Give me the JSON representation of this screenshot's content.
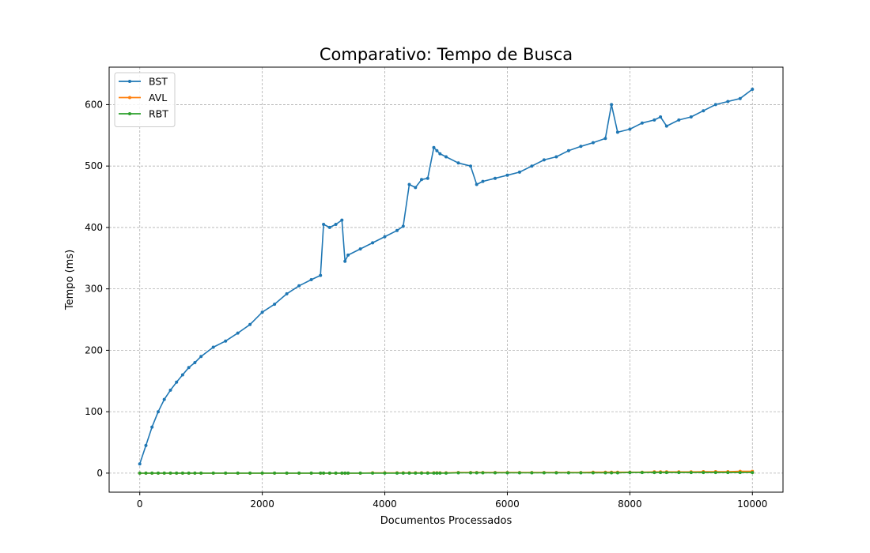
{
  "chart_data": {
    "type": "line",
    "title": "Comparativo: Tempo de Busca",
    "xlabel": "Documentos Processados",
    "ylabel": "Tempo (ms)",
    "xlim": [
      -500,
      10500
    ],
    "ylim": [
      -31,
      661
    ],
    "xticks": [
      0,
      2000,
      4000,
      6000,
      8000,
      10000
    ],
    "yticks": [
      0,
      100,
      200,
      300,
      400,
      500,
      600
    ],
    "grid": true,
    "legend_position": "top-left",
    "x": [
      0,
      100,
      200,
      300,
      400,
      500,
      600,
      700,
      800,
      900,
      1000,
      1200,
      1400,
      1600,
      1800,
      2000,
      2200,
      2400,
      2600,
      2800,
      2950,
      3000,
      3100,
      3200,
      3300,
      3350,
      3400,
      3600,
      3800,
      4000,
      4200,
      4300,
      4400,
      4500,
      4600,
      4700,
      4800,
      4850,
      4900,
      5000,
      5200,
      5400,
      5500,
      5600,
      5800,
      6000,
      6200,
      6400,
      6600,
      6800,
      7000,
      7200,
      7400,
      7600,
      7700,
      7800,
      8000,
      8200,
      8400,
      8500,
      8600,
      8800,
      9000,
      9200,
      9400,
      9600,
      9800,
      10000
    ],
    "series": [
      {
        "name": "BST",
        "color": "#1f77b4",
        "values": [
          15,
          45,
          75,
          100,
          120,
          135,
          148,
          160,
          172,
          180,
          190,
          205,
          215,
          228,
          242,
          262,
          275,
          292,
          305,
          315,
          322,
          405,
          400,
          405,
          412,
          345,
          355,
          365,
          375,
          385,
          395,
          402,
          470,
          465,
          478,
          480,
          530,
          525,
          520,
          515,
          505,
          500,
          470,
          475,
          480,
          485,
          490,
          500,
          510,
          515,
          525,
          532,
          538,
          545,
          600,
          555,
          560,
          570,
          575,
          580,
          565,
          575,
          580,
          590,
          600,
          605,
          610,
          625
        ]
      },
      {
        "name": "AVL",
        "color": "#ff7f0e",
        "values": [
          0,
          0,
          0,
          0,
          0,
          0,
          0,
          0,
          0,
          0,
          0,
          0,
          0,
          0,
          0,
          0,
          0,
          0,
          0,
          0,
          0,
          0,
          0,
          0,
          0,
          0,
          0,
          0,
          0.5,
          0.5,
          0.5,
          0.5,
          0.5,
          0.5,
          0.5,
          0.5,
          0.5,
          0.5,
          0.5,
          0.5,
          1,
          1,
          1,
          1,
          1,
          1,
          1,
          1,
          1,
          1,
          1,
          1,
          1.5,
          1.5,
          1.5,
          1.5,
          1.5,
          1.5,
          2,
          2,
          2,
          2,
          2,
          2.5,
          2.5,
          2.5,
          3,
          3
        ]
      },
      {
        "name": "RBT",
        "color": "#2ca02c",
        "values": [
          0,
          0,
          0,
          0,
          0,
          0,
          0,
          0,
          0,
          0,
          0,
          0,
          0,
          0,
          0,
          0,
          0,
          0,
          0,
          0,
          0,
          0,
          0,
          0,
          0,
          0,
          0,
          0,
          0,
          0,
          0,
          0,
          0,
          0,
          0,
          0,
          0,
          0,
          0,
          0,
          0.5,
          0.5,
          0.5,
          0.5,
          0.5,
          0.5,
          0.5,
          0.5,
          0.5,
          0.5,
          0.5,
          0.5,
          0.5,
          0.5,
          0.5,
          0.5,
          1,
          1,
          1,
          1,
          1,
          1,
          1,
          1,
          1,
          1,
          1,
          1
        ]
      }
    ]
  }
}
